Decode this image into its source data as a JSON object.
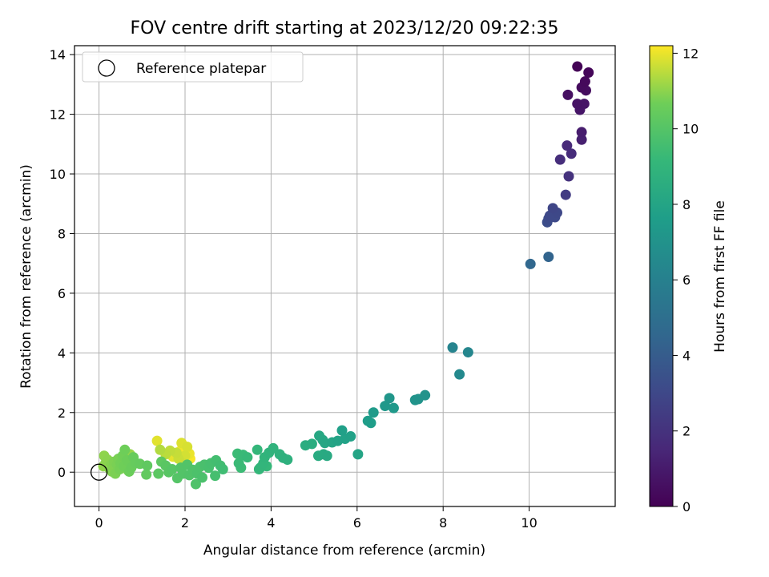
{
  "chart_data": {
    "type": "scatter",
    "title": "FOV centre drift starting at 2023/12/20 09:22:35",
    "xlabel": "Angular distance from reference (arcmin)",
    "ylabel": "Rotation from reference (arcmin)",
    "xlim": [
      -0.57,
      12.0
    ],
    "ylim": [
      -1.15,
      14.3
    ],
    "xticks": [
      0,
      2,
      4,
      6,
      8,
      10
    ],
    "yticks": [
      0,
      2,
      4,
      6,
      8,
      10,
      12,
      14
    ],
    "grid": true,
    "legend": {
      "position": "top-left",
      "entries": [
        "Reference platepar"
      ]
    },
    "reference_point": {
      "x": 0,
      "y": 0
    },
    "colorbar": {
      "label": "Hours from first FF file",
      "range": [
        0,
        12.2
      ],
      "ticks": [
        0,
        2,
        4,
        6,
        8,
        10,
        12
      ],
      "colormap": "viridis"
    },
    "points": [
      {
        "x": 11.12,
        "y": 13.6,
        "c": 0.1
      },
      {
        "x": 11.38,
        "y": 13.4,
        "c": 0.2
      },
      {
        "x": 11.3,
        "y": 13.1,
        "c": 0.3
      },
      {
        "x": 11.22,
        "y": 12.9,
        "c": 0.4
      },
      {
        "x": 11.32,
        "y": 12.8,
        "c": 0.45
      },
      {
        "x": 10.9,
        "y": 12.65,
        "c": 0.6
      },
      {
        "x": 11.12,
        "y": 12.35,
        "c": 0.7
      },
      {
        "x": 11.28,
        "y": 12.35,
        "c": 0.75
      },
      {
        "x": 11.18,
        "y": 12.15,
        "c": 0.8
      },
      {
        "x": 11.22,
        "y": 11.4,
        "c": 1.1
      },
      {
        "x": 11.22,
        "y": 11.15,
        "c": 1.2
      },
      {
        "x": 10.88,
        "y": 10.95,
        "c": 1.6
      },
      {
        "x": 10.98,
        "y": 10.68,
        "c": 1.7
      },
      {
        "x": 10.72,
        "y": 10.48,
        "c": 1.8
      },
      {
        "x": 10.92,
        "y": 9.92,
        "c": 2.0
      },
      {
        "x": 10.85,
        "y": 9.3,
        "c": 2.4
      },
      {
        "x": 10.55,
        "y": 8.85,
        "c": 2.9
      },
      {
        "x": 10.65,
        "y": 8.7,
        "c": 3.0
      },
      {
        "x": 10.48,
        "y": 8.6,
        "c": 3.05
      },
      {
        "x": 10.6,
        "y": 8.55,
        "c": 3.1
      },
      {
        "x": 10.45,
        "y": 8.5,
        "c": 3.15
      },
      {
        "x": 10.42,
        "y": 8.38,
        "c": 3.25
      },
      {
        "x": 10.45,
        "y": 7.22,
        "c": 4.4
      },
      {
        "x": 10.03,
        "y": 6.98,
        "c": 4.6
      },
      {
        "x": 8.22,
        "y": 4.18,
        "c": 6.2
      },
      {
        "x": 8.58,
        "y": 4.02,
        "c": 6.3
      },
      {
        "x": 8.38,
        "y": 3.28,
        "c": 6.5
      },
      {
        "x": 7.58,
        "y": 2.58,
        "c": 7.0
      },
      {
        "x": 7.35,
        "y": 2.42,
        "c": 7.1
      },
      {
        "x": 7.42,
        "y": 2.45,
        "c": 7.05
      },
      {
        "x": 6.75,
        "y": 2.48,
        "c": 7.2
      },
      {
        "x": 6.65,
        "y": 2.22,
        "c": 7.3
      },
      {
        "x": 6.85,
        "y": 2.15,
        "c": 7.35
      },
      {
        "x": 6.38,
        "y": 2.0,
        "c": 7.45
      },
      {
        "x": 6.25,
        "y": 1.72,
        "c": 7.55
      },
      {
        "x": 6.32,
        "y": 1.65,
        "c": 7.6
      },
      {
        "x": 6.02,
        "y": 0.6,
        "c": 8.0
      },
      {
        "x": 5.85,
        "y": 1.2,
        "c": 7.8
      },
      {
        "x": 5.72,
        "y": 1.12,
        "c": 7.85
      },
      {
        "x": 5.65,
        "y": 1.4,
        "c": 7.75
      },
      {
        "x": 5.55,
        "y": 1.05,
        "c": 7.95
      },
      {
        "x": 5.42,
        "y": 1.0,
        "c": 8.05
      },
      {
        "x": 5.25,
        "y": 0.98,
        "c": 8.1
      },
      {
        "x": 5.12,
        "y": 1.22,
        "c": 8.15
      },
      {
        "x": 5.2,
        "y": 1.08,
        "c": 8.2
      },
      {
        "x": 5.3,
        "y": 0.55,
        "c": 8.3
      },
      {
        "x": 5.22,
        "y": 0.6,
        "c": 8.35
      },
      {
        "x": 5.1,
        "y": 0.55,
        "c": 8.4
      },
      {
        "x": 4.95,
        "y": 0.95,
        "c": 8.45
      },
      {
        "x": 4.8,
        "y": 0.9,
        "c": 8.5
      },
      {
        "x": 4.38,
        "y": 0.42,
        "c": 8.7
      },
      {
        "x": 4.28,
        "y": 0.48,
        "c": 8.75
      },
      {
        "x": 4.2,
        "y": 0.6,
        "c": 8.8
      },
      {
        "x": 4.05,
        "y": 0.8,
        "c": 8.85
      },
      {
        "x": 3.95,
        "y": 0.65,
        "c": 8.9
      },
      {
        "x": 3.85,
        "y": 0.5,
        "c": 8.95
      },
      {
        "x": 3.82,
        "y": 0.3,
        "c": 9.0
      },
      {
        "x": 3.75,
        "y": 0.15,
        "c": 9.05
      },
      {
        "x": 3.68,
        "y": 0.75,
        "c": 9.1
      },
      {
        "x": 3.72,
        "y": 0.1,
        "c": 9.12
      },
      {
        "x": 3.9,
        "y": 0.2,
        "c": 9.15
      },
      {
        "x": 3.45,
        "y": 0.5,
        "c": 9.2
      },
      {
        "x": 3.35,
        "y": 0.58,
        "c": 9.25
      },
      {
        "x": 3.25,
        "y": 0.3,
        "c": 9.3
      },
      {
        "x": 3.22,
        "y": 0.62,
        "c": 9.32
      },
      {
        "x": 3.3,
        "y": 0.15,
        "c": 9.35
      },
      {
        "x": 2.88,
        "y": 0.1,
        "c": 9.45
      },
      {
        "x": 2.82,
        "y": 0.22,
        "c": 9.5
      },
      {
        "x": 2.72,
        "y": 0.4,
        "c": 9.55
      },
      {
        "x": 2.7,
        "y": -0.12,
        "c": 9.6
      },
      {
        "x": 2.6,
        "y": 0.3,
        "c": 9.62
      },
      {
        "x": 2.55,
        "y": 0.15,
        "c": 9.65
      },
      {
        "x": 2.45,
        "y": 0.25,
        "c": 9.7
      },
      {
        "x": 2.4,
        "y": -0.18,
        "c": 9.75
      },
      {
        "x": 2.35,
        "y": 0.18,
        "c": 9.78
      },
      {
        "x": 2.28,
        "y": -0.05,
        "c": 9.8
      },
      {
        "x": 2.25,
        "y": -0.4,
        "c": 9.85
      },
      {
        "x": 2.18,
        "y": 0.08,
        "c": 9.88
      },
      {
        "x": 2.1,
        "y": -0.1,
        "c": 9.9
      },
      {
        "x": 2.05,
        "y": 0.25,
        "c": 9.92
      },
      {
        "x": 1.95,
        "y": -0.05,
        "c": 9.95
      },
      {
        "x": 1.9,
        "y": 0.15,
        "c": 9.97
      },
      {
        "x": 1.82,
        "y": -0.2,
        "c": 10.0
      },
      {
        "x": 1.7,
        "y": 0.1,
        "c": 10.05
      },
      {
        "x": 1.62,
        "y": 0.0,
        "c": 10.1
      },
      {
        "x": 1.55,
        "y": 0.22,
        "c": 10.15
      },
      {
        "x": 1.38,
        "y": -0.05,
        "c": 10.2
      },
      {
        "x": 1.45,
        "y": 0.35,
        "c": 10.25
      },
      {
        "x": 1.12,
        "y": 0.22,
        "c": 10.3
      },
      {
        "x": 1.1,
        "y": -0.08,
        "c": 10.35
      },
      {
        "x": 0.95,
        "y": 0.28,
        "c": 10.4
      },
      {
        "x": 0.85,
        "y": 0.3,
        "c": 10.45
      },
      {
        "x": 0.8,
        "y": 0.5,
        "c": 10.5
      },
      {
        "x": 0.75,
        "y": 0.15,
        "c": 10.55
      },
      {
        "x": 0.7,
        "y": 0.02,
        "c": 10.6
      },
      {
        "x": 0.65,
        "y": 0.4,
        "c": 10.62
      },
      {
        "x": 0.6,
        "y": 0.75,
        "c": 10.65
      },
      {
        "x": 0.58,
        "y": 0.2,
        "c": 10.68
      },
      {
        "x": 0.55,
        "y": 0.55,
        "c": 10.7
      },
      {
        "x": 0.5,
        "y": 0.3,
        "c": 10.72
      },
      {
        "x": 0.48,
        "y": 0.1,
        "c": 10.75
      },
      {
        "x": 0.45,
        "y": 0.45,
        "c": 10.78
      },
      {
        "x": 0.42,
        "y": 0.25,
        "c": 10.8
      },
      {
        "x": 0.38,
        "y": -0.05,
        "c": 10.82
      },
      {
        "x": 0.35,
        "y": 0.35,
        "c": 10.85
      },
      {
        "x": 0.32,
        "y": 0.15,
        "c": 10.88
      },
      {
        "x": 0.3,
        "y": 0.02,
        "c": 10.9
      },
      {
        "x": 0.28,
        "y": 0.25,
        "c": 10.92
      },
      {
        "x": 0.25,
        "y": 0.1,
        "c": 10.95
      },
      {
        "x": 0.2,
        "y": 0.42,
        "c": 10.98
      },
      {
        "x": 0.15,
        "y": 0.3,
        "c": 11.0
      },
      {
        "x": 0.12,
        "y": 0.55,
        "c": 11.02
      },
      {
        "x": 0.1,
        "y": 0.2,
        "c": 11.05
      },
      {
        "x": 0.72,
        "y": 0.6,
        "c": 11.1
      },
      {
        "x": 0.62,
        "y": 0.45,
        "c": 11.15
      },
      {
        "x": 0.68,
        "y": 0.05,
        "c": 11.2
      },
      {
        "x": 1.42,
        "y": 0.75,
        "c": 11.4
      },
      {
        "x": 1.55,
        "y": 0.6,
        "c": 11.5
      },
      {
        "x": 1.65,
        "y": 0.72,
        "c": 11.55
      },
      {
        "x": 1.8,
        "y": 0.65,
        "c": 11.6
      },
      {
        "x": 1.85,
        "y": 0.45,
        "c": 11.65
      },
      {
        "x": 1.95,
        "y": 0.3,
        "c": 11.7
      },
      {
        "x": 2.0,
        "y": 0.55,
        "c": 11.75
      },
      {
        "x": 2.05,
        "y": 0.85,
        "c": 11.8
      },
      {
        "x": 1.92,
        "y": 0.98,
        "c": 11.85
      },
      {
        "x": 1.35,
        "y": 1.05,
        "c": 11.9
      },
      {
        "x": 1.72,
        "y": 0.52,
        "c": 11.95
      },
      {
        "x": 2.1,
        "y": 0.62,
        "c": 12.0
      },
      {
        "x": 1.88,
        "y": 0.7,
        "c": 12.05
      },
      {
        "x": 1.98,
        "y": 0.42,
        "c": 12.1
      },
      {
        "x": 2.12,
        "y": 0.45,
        "c": 12.15
      }
    ]
  }
}
